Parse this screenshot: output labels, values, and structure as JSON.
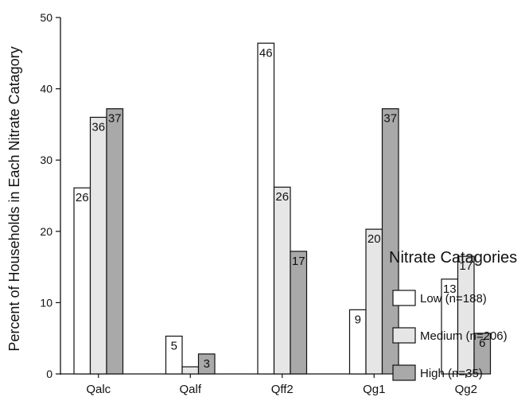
{
  "chart_data": {
    "type": "bar",
    "title": "",
    "xlabel": "",
    "ylabel": "Percent of Households in Each Nitrate Catagory",
    "ylim": [
      0,
      50
    ],
    "yticks": [
      0,
      10,
      20,
      30,
      40,
      50
    ],
    "grid": false,
    "legend_position": "right",
    "legend_title": "Nitrate Catagories",
    "categories": [
      "Qalc",
      "Qalf",
      "Qff2",
      "Qg1",
      "Qg2"
    ],
    "series": [
      {
        "name": "Low (n=188)",
        "color": "#ffffff",
        "values": [
          26.1,
          5.3,
          46.4,
          9.0,
          13.3
        ],
        "labels": [
          "26",
          "5",
          "46",
          "9",
          "13"
        ]
      },
      {
        "name": "Medium (n=206)",
        "color": "#e6e6e6",
        "values": [
          36.0,
          1.0,
          26.2,
          20.3,
          16.5
        ],
        "labels": [
          "36",
          "",
          "26",
          "20",
          "17"
        ]
      },
      {
        "name": "High (n=35)",
        "color": "#a9a9a9",
        "values": [
          37.2,
          2.8,
          17.2,
          37.2,
          5.7
        ],
        "labels": [
          "37",
          "3",
          "17",
          "37",
          "6"
        ]
      }
    ]
  }
}
